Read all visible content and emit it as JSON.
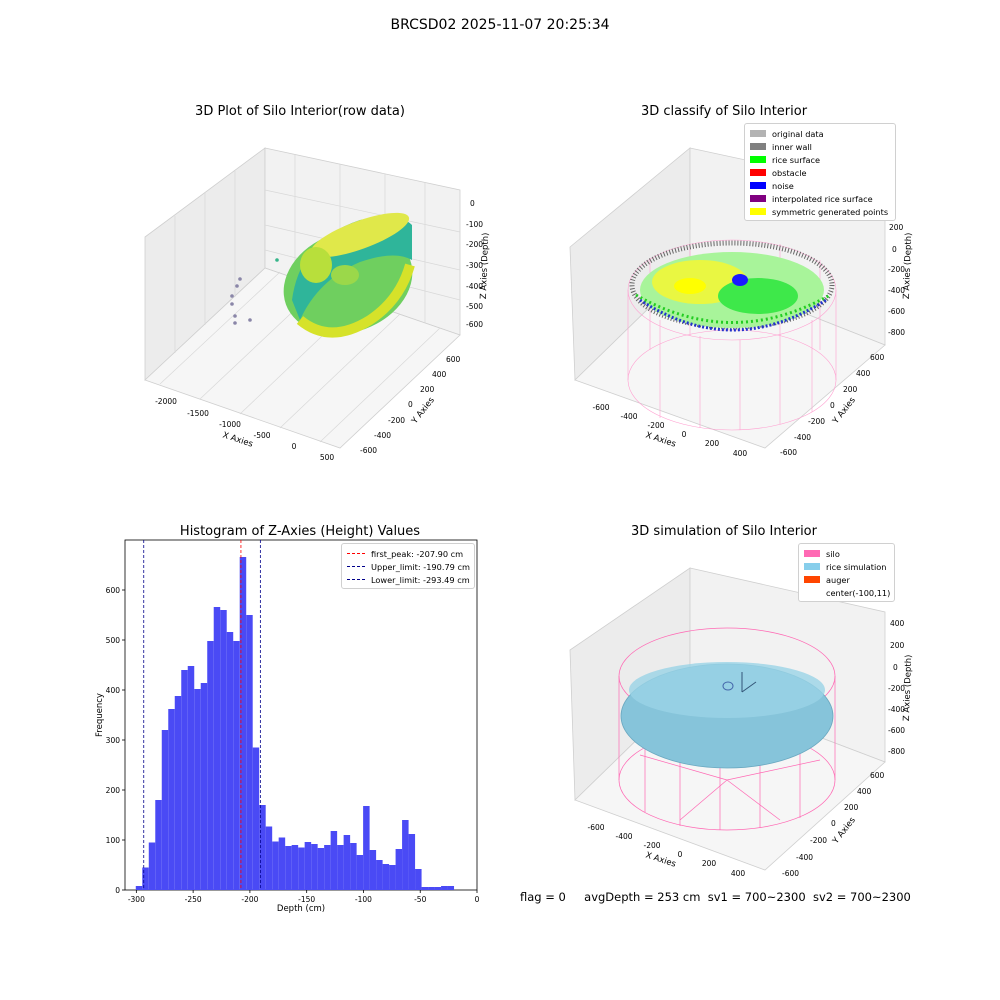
{
  "suptitle": "BRCSD02 2025-11-07 20:25:34",
  "panels": {
    "raw": {
      "title": "3D Plot of Silo Interior(row data)",
      "xlabel": "X Axies",
      "ylabel": "Y Axies",
      "zlabel": "Z Axies (Depth)",
      "xticks": [
        "-2000",
        "-1500",
        "-1000",
        "-500",
        "0",
        "500"
      ],
      "yticks": [
        "-600",
        "-400",
        "-200",
        "0",
        "200",
        "400",
        "600"
      ],
      "zticks": [
        "0",
        "-100",
        "-200",
        "-300",
        "-400",
        "-500",
        "-600"
      ]
    },
    "classify": {
      "title": "3D classify of Silo Interior",
      "xlabel": "X Axies",
      "ylabel": "Y Axies",
      "zlabel": "Z Axies (Depth)",
      "xticks": [
        "-600",
        "-400",
        "-200",
        "0",
        "200",
        "400"
      ],
      "yticks": [
        "-600",
        "-400",
        "-200",
        "0",
        "200",
        "400",
        "600"
      ],
      "zticks": [
        "200",
        "0",
        "-200",
        "-400",
        "-600",
        "-800"
      ],
      "legend": [
        {
          "label": "original data",
          "color": "#b3b3b3"
        },
        {
          "label": "inner wall",
          "color": "#808080"
        },
        {
          "label": "rice surface",
          "color": "#00ff00"
        },
        {
          "label": "obstacle",
          "color": "#ff0000"
        },
        {
          "label": "noise",
          "color": "#0000ff"
        },
        {
          "label": "interpolated rice surface",
          "color": "#800080"
        },
        {
          "label": "symmetric generated points",
          "color": "#ffff00"
        }
      ]
    },
    "simulation": {
      "title": "3D simulation of Silo Interior",
      "xlabel": "X Axies",
      "ylabel": "Y Axies",
      "zlabel": "Z Axies (Depth)",
      "xticks": [
        "-600",
        "-400",
        "-200",
        "0",
        "200",
        "400"
      ],
      "yticks": [
        "-600",
        "-400",
        "-200",
        "0",
        "200",
        "400",
        "600"
      ],
      "zticks": [
        "400",
        "200",
        "0",
        "-200",
        "-400",
        "-600",
        "-800"
      ],
      "legend": [
        {
          "label": "silo",
          "color": "#ff69b4"
        },
        {
          "label": "rice simulation",
          "color": "#87ceeb"
        },
        {
          "label": "auger",
          "color": "#ff4500"
        },
        {
          "label": "center(-100,11)",
          "color": ""
        }
      ]
    }
  },
  "status": {
    "flag": "flag = 0",
    "avg_depth": "avgDepth = 253 cm",
    "sv1": "sv1 = 700~2300",
    "sv2": "sv2 = 700~2300"
  },
  "chart_data": {
    "type": "bar",
    "title": "Histogram of Z-Axies (Height) Values",
    "xlabel": "Depth (cm)",
    "ylabel": "Frequency",
    "xlim": [
      -310,
      0
    ],
    "ylim": [
      0,
      700
    ],
    "xticks": [
      -300,
      -250,
      -200,
      -150,
      -100,
      -50,
      0
    ],
    "yticks": [
      0,
      100,
      200,
      300,
      400,
      500,
      600
    ],
    "bin_width": 5.72,
    "bin_start": -300.5,
    "values": [
      8,
      45,
      95,
      180,
      320,
      362,
      388,
      440,
      448,
      402,
      414,
      498,
      566,
      560,
      516,
      498,
      666,
      550,
      285,
      170,
      127,
      97,
      105,
      88,
      90,
      85,
      96,
      92,
      84,
      90,
      118,
      90,
      110,
      94,
      70,
      168,
      80,
      60,
      52,
      50,
      82,
      140,
      112,
      42,
      6,
      6,
      6,
      8,
      8
    ],
    "color": "#4a4af5",
    "vlines": [
      {
        "label": "first_peak: -207.90 cm",
        "x": -207.9,
        "color": "#ff0000"
      },
      {
        "label": "Upper_limit: -190.79 cm",
        "x": -190.79,
        "color": "#00008b"
      },
      {
        "label": "Lower_limit: -293.49 cm",
        "x": -293.49,
        "color": "#00008b"
      }
    ],
    "legend_position": "top-right",
    "grid": false
  }
}
